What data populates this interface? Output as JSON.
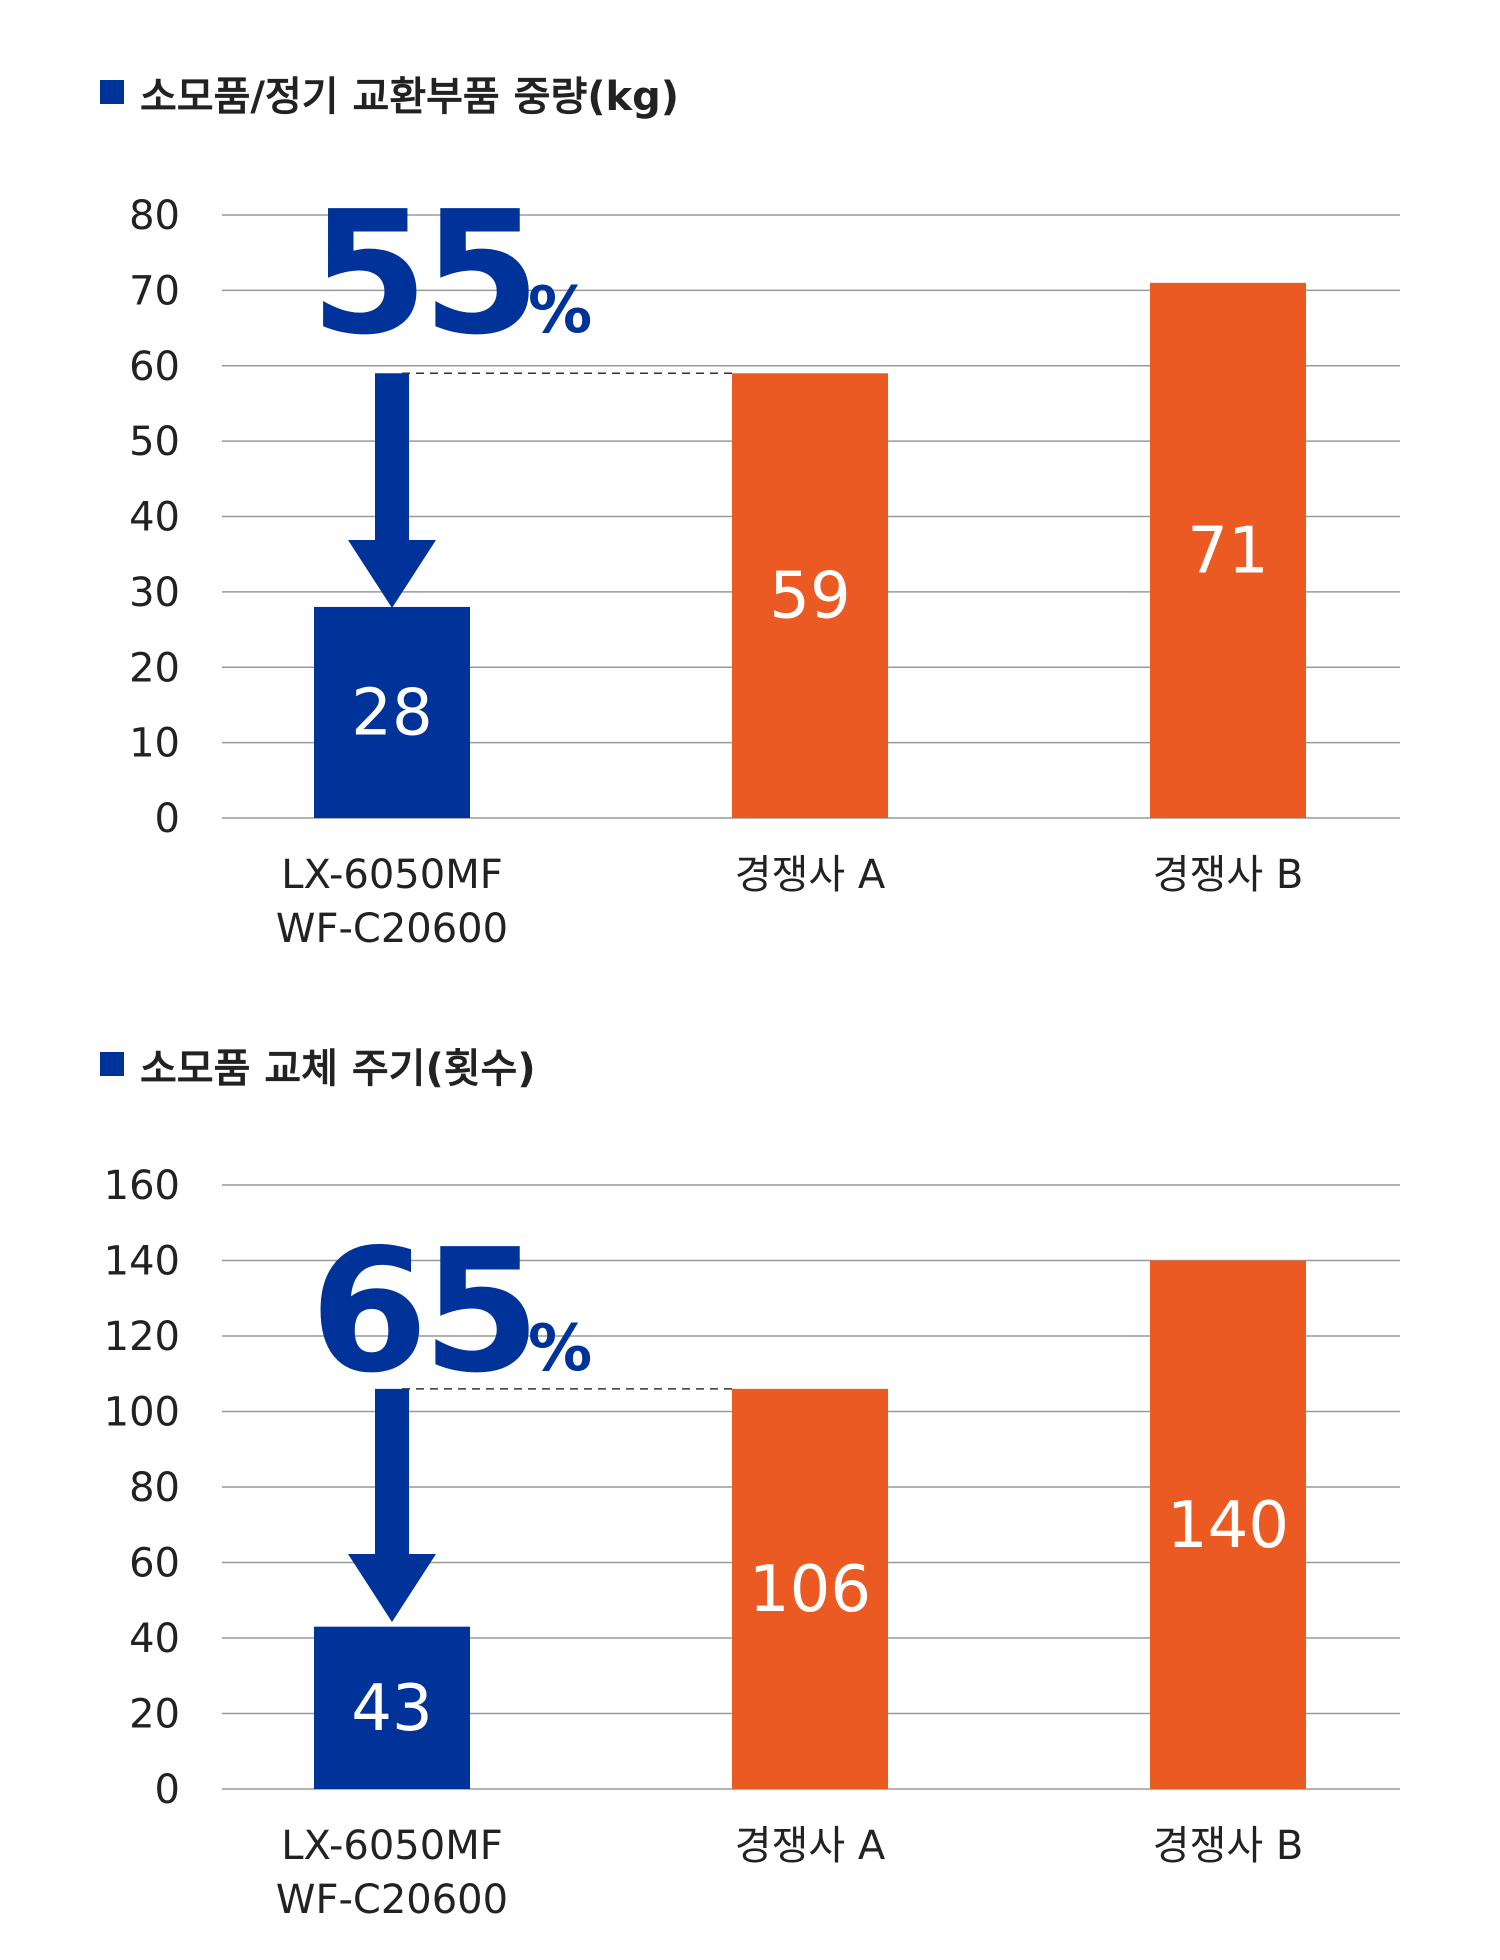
{
  "colors": {
    "ours": "#003399",
    "competitor": "#ec5a24",
    "grid": "#999999",
    "text": "#222222"
  },
  "chart_data": [
    {
      "type": "bar",
      "title": "소모품/정기 교환부품 중량(kg)",
      "categories": [
        "LX-6050MF\nWF-C20600",
        "경쟁사 A",
        "경쟁사 B"
      ],
      "values": [
        28,
        59,
        71
      ],
      "value_labels": [
        "28",
        "59",
        "71"
      ],
      "ylim": [
        0,
        80
      ],
      "yticks": [
        0,
        10,
        20,
        30,
        40,
        50,
        60,
        70,
        80
      ],
      "grid": true,
      "annotation": {
        "number": "55",
        "unit": "%"
      }
    },
    {
      "type": "bar",
      "title": "소모품 교체 주기(횟수)",
      "categories": [
        "LX-6050MF\nWF-C20600",
        "경쟁사 A",
        "경쟁사 B"
      ],
      "values": [
        43,
        106,
        140
      ],
      "value_labels": [
        "43",
        "106",
        "140"
      ],
      "ylim": [
        0,
        160
      ],
      "yticks": [
        0,
        20,
        40,
        60,
        80,
        100,
        120,
        140,
        160
      ],
      "grid": true,
      "annotation": {
        "number": "65",
        "unit": "%"
      }
    }
  ]
}
